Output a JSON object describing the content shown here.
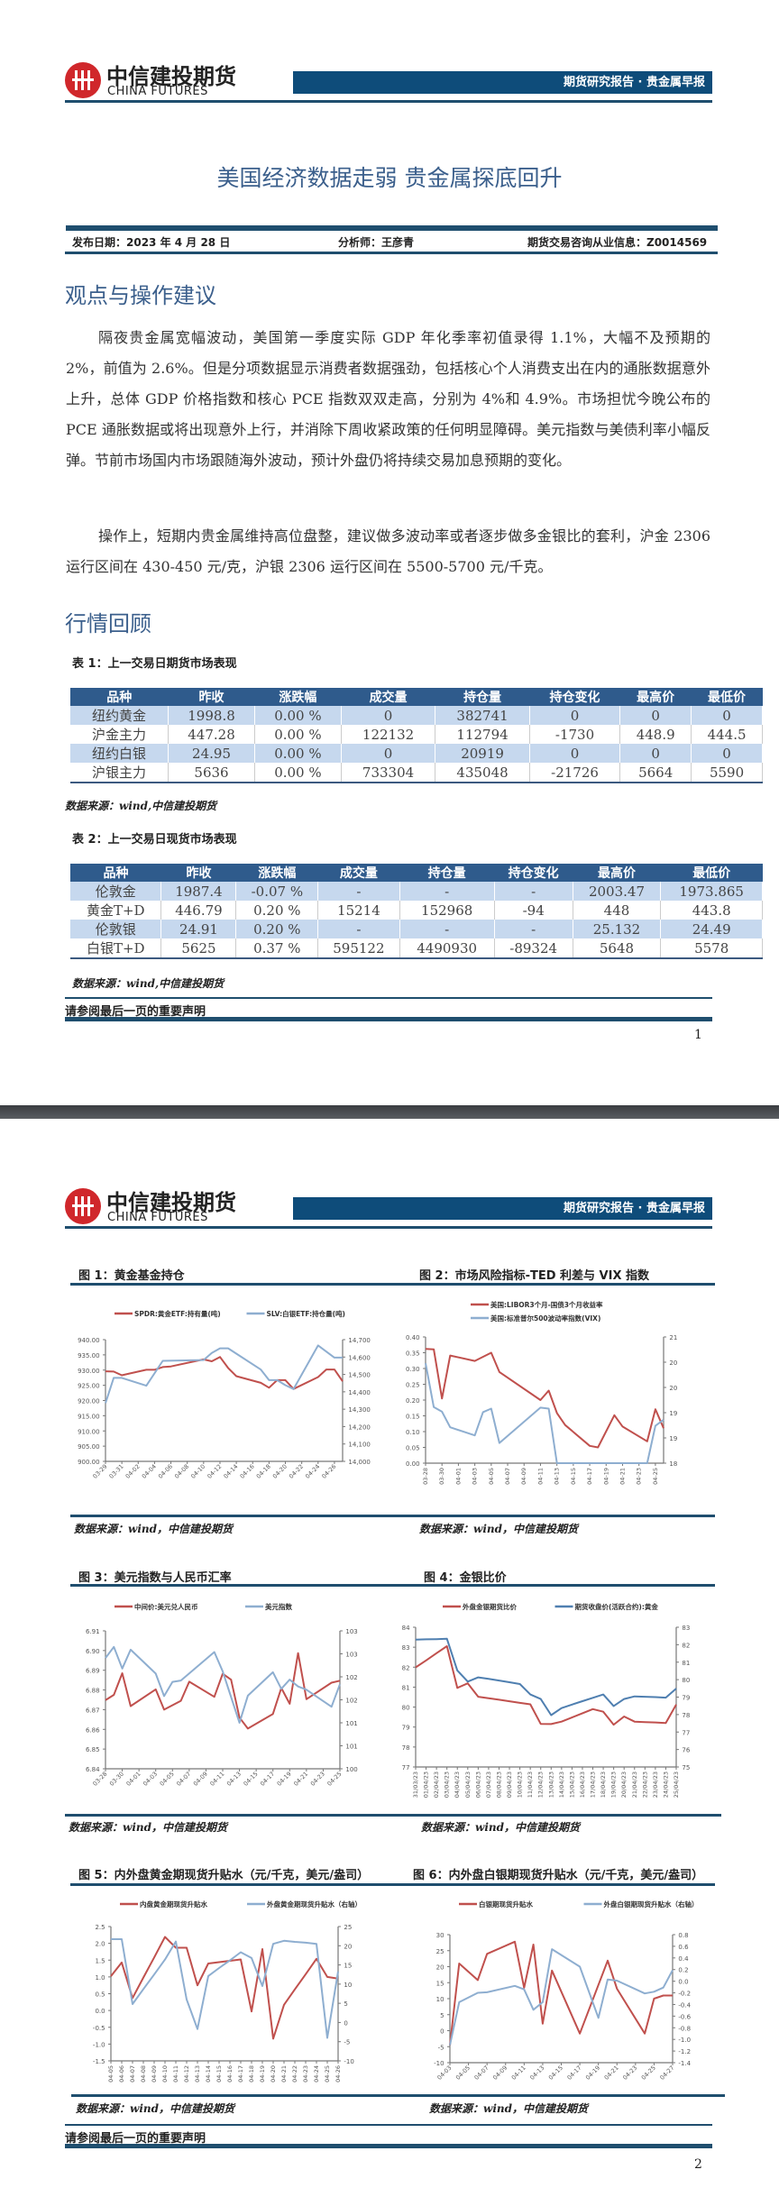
{
  "brand": {
    "name_cn": "中信建投期货",
    "name_en": "CHINA FUTURES",
    "logo_color": "#d0272b"
  },
  "header": {
    "report_type": "期货研究报告 · 贵金属早报",
    "bar_color": "#0e4c7a"
  },
  "page1": {
    "title": "美国经济数据走弱 贵金属探底回升",
    "publish_date": "发布日期：2023 年 4 月 28 日",
    "analyst": "分析师：王彦青",
    "license": "期货交易咨询从业信息：Z0014569",
    "section1": "观点与操作建议",
    "paragraphs": [
      "隔夜贵金属宽幅波动，美国第一季度实际 GDP 年化季率初值录得 1.1%，大幅不及预期的 2%，前值为 2.6%。但是分项数据显示消费者数据强劲，包括核心个人消费支出在内的通胀数据意外上升，总体 GDP 价格指数和核心 PCE 指数双双走高，分别为 4%和 4.9%。市场担忧今晚公布的 PCE 通胀数据或将出现意外上行，并消除下周收紧政策的任何明显障碍。美元指数与美债利率小幅反弹。节前市场国内市场跟随海外波动，预计外盘仍将持续交易加息预期的变化。",
      "操作上，短期内贵金属维持高位盘整，建议做多波动率或者逐步做多金银比的套利，沪金 2306 运行区间在 430-450 元/克，沪银 2306 运行区间在 5500-5700 元/千克。"
    ],
    "section2": "行情回顾",
    "table1": {
      "caption": "表 1：上一交易日期货市场表现",
      "columns": [
        "品种",
        "昨收",
        "涨跌幅",
        "成交量",
        "持仓量",
        "持仓变化",
        "最高价",
        "最低价"
      ],
      "rows": [
        [
          "纽约黄金",
          "1998.8",
          "0.00 %",
          "0",
          "382741",
          "0",
          "0",
          "0"
        ],
        [
          "沪金主力",
          "447.28",
          "0.00 %",
          "122132",
          "112794",
          "-1730",
          "448.9",
          "444.5"
        ],
        [
          "纽约白银",
          "24.95",
          "0.00 %",
          "0",
          "20919",
          "0",
          "0",
          "0"
        ],
        [
          "沪银主力",
          "5636",
          "0.00 %",
          "733304",
          "435048",
          "-21726",
          "5664",
          "5590"
        ]
      ],
      "source": "数据来源：wind,中信建投期货"
    },
    "table2": {
      "caption": "表 2：上一交易日现货市场表现",
      "columns": [
        "品种",
        "昨收",
        "涨跌幅",
        "成交量",
        "持仓量",
        "持仓变化",
        "最高价",
        "最低价"
      ],
      "rows": [
        [
          "伦敦金",
          "1987.4",
          "-0.07 %",
          "-",
          "-",
          "-",
          "2003.47",
          "1973.865"
        ],
        [
          "黄金T+D",
          "446.79",
          "0.20 %",
          "15214",
          "152968",
          "-94",
          "448",
          "443.8"
        ],
        [
          "伦敦银",
          "24.91",
          "0.20 %",
          "-",
          "-",
          "-",
          "25.132",
          "24.49"
        ],
        [
          "白银T+D",
          "5625",
          "0.37 %",
          "595122",
          "4490930",
          "-89324",
          "5648",
          "5578"
        ]
      ],
      "source": "数据来源：wind,中信建投期货"
    },
    "disclaimer": "请参阅最后一页的重要声明",
    "page_number": "1"
  },
  "page2": {
    "source": "数据来源：wind，中信建投期货",
    "disclaimer": "请参阅最后一页的重要声明",
    "page_number": "2"
  },
  "chart_data": [
    {
      "title": "图 1：黄金基金持仓",
      "type": "line",
      "x_type": "date",
      "x_range": [
        "03-29",
        "04-27"
      ],
      "x_ticks": [
        "03-29",
        "03-31",
        "04-02",
        "04-04",
        "04-06",
        "04-08",
        "04-10",
        "04-12",
        "04-14",
        "04-16",
        "04-18",
        "04-20",
        "04-22",
        "04-24",
        "04-26"
      ],
      "y_left": {
        "range": [
          900,
          940
        ],
        "ticks": [
          "900.00",
          "905.00",
          "910.00",
          "915.00",
          "920.00",
          "925.00",
          "930.00",
          "935.00",
          "940.00"
        ]
      },
      "y_right": {
        "range": [
          14000,
          14700
        ],
        "ticks": [
          "14,000",
          "14,100",
          "14,200",
          "14,300",
          "14,400",
          "14,500",
          "14,600",
          "14,700"
        ]
      },
      "series": [
        {
          "name": "SPDR:黄金ETF:持有量(吨)",
          "axis": "left",
          "color": "#c0504d",
          "x": [
            "03-29",
            "03-30",
            "03-31",
            "04-03",
            "04-04",
            "04-05",
            "04-06",
            "04-10",
            "04-11",
            "04-12",
            "04-13",
            "04-14",
            "04-17",
            "04-18",
            "04-19",
            "04-20",
            "04-21",
            "04-24",
            "04-25",
            "04-26",
            "04-27"
          ],
          "y": [
            929.6,
            929.5,
            928.3,
            930.1,
            930.1,
            931.0,
            931.2,
            933.5,
            932.9,
            934.3,
            930.7,
            928.0,
            925.8,
            924.2,
            926.7,
            926.7,
            923.8,
            927.7,
            930.2,
            930.2,
            926.3
          ]
        },
        {
          "name": "SLV:白银ETF:持仓量(吨)",
          "axis": "right",
          "color": "#8eaed0",
          "x": [
            "03-29",
            "03-30",
            "03-31",
            "04-03",
            "04-05",
            "04-10",
            "04-11",
            "04-12",
            "04-13",
            "04-17",
            "04-18",
            "04-19",
            "04-20",
            "04-21",
            "04-24",
            "04-26",
            "04-27"
          ],
          "y": [
            14335,
            14480,
            14480,
            14435,
            14578,
            14583,
            14624,
            14650,
            14650,
            14528,
            14467,
            14467,
            14438,
            14416,
            14667,
            14597,
            14597
          ]
        }
      ]
    },
    {
      "title": "图 2：市场风险指标-TED 利差与 VIX 指数",
      "type": "line",
      "x_type": "date",
      "x_range": [
        "03-28",
        "04-26"
      ],
      "x_label_rotate": "vertical",
      "x_ticks": [
        "03-28",
        "03-30",
        "04-01",
        "04-03",
        "04-05",
        "04-07",
        "04-09",
        "04-11",
        "04-13",
        "04-15",
        "04-17",
        "04-19",
        "04-21",
        "04-23",
        "04-25"
      ],
      "y_left": {
        "range": [
          0,
          0.4
        ],
        "ticks": [
          "0.00",
          "0.05",
          "0.10",
          "0.15",
          "0.20",
          "0.25",
          "0.30",
          "0.35",
          "0.40"
        ]
      },
      "y_right": {
        "range": [
          18.5,
          21
        ],
        "ticks": [
          "18",
          "19",
          "19",
          "20",
          "20",
          "21"
        ]
      },
      "legend_stacked": true,
      "series": [
        {
          "name": "美国:LIBOR3个月-国债3个月收益率",
          "axis": "left",
          "color": "#c0504d",
          "x": [
            "03-28",
            "03-29",
            "03-30",
            "03-31",
            "04-03",
            "04-05",
            "04-06",
            "04-11",
            "04-12",
            "04-13",
            "04-14",
            "04-17",
            "04-18",
            "04-20",
            "04-21",
            "04-24",
            "04-25",
            "04-26"
          ],
          "y": [
            0.362,
            0.361,
            0.205,
            0.341,
            0.324,
            0.35,
            0.289,
            0.2,
            0.23,
            0.159,
            0.121,
            0.055,
            0.05,
            0.152,
            0.116,
            0.069,
            0.171,
            0.111
          ]
        },
        {
          "name": "美国:标准普尔500波动率指数(VIX)",
          "axis": "right",
          "color": "#8eaed0",
          "x": [
            "03-28",
            "03-29",
            "03-30",
            "03-31",
            "04-03",
            "04-04",
            "04-05",
            "04-06",
            "04-11",
            "04-12",
            "04-13",
            "04-24",
            "04-25",
            "04-26"
          ],
          "y": [
            20.48,
            19.61,
            19.52,
            19.21,
            19.05,
            19.51,
            19.58,
            18.9,
            19.6,
            19.58,
            18.5,
            18.5,
            19.24,
            19.36
          ]
        }
      ]
    },
    {
      "title": "图 3：美元指数与人民币汇率",
      "type": "line",
      "x_type": "date",
      "x_range": [
        "03-28",
        "04-25"
      ],
      "x_ticks": [
        "03-28",
        "03-30",
        "04-01",
        "04-03",
        "04-05",
        "04-07",
        "04-09",
        "04-11",
        "04-13",
        "04-15",
        "04-17",
        "04-19",
        "04-21",
        "04-23",
        "04-25"
      ],
      "y_left": {
        "range": [
          6.84,
          6.91
        ],
        "ticks": [
          "6.84",
          "6.85",
          "6.86",
          "6.87",
          "6.88",
          "6.89",
          "6.90",
          "6.91"
        ]
      },
      "y_right": {
        "range": [
          100,
          103
        ],
        "ticks": [
          "100",
          "101",
          "101",
          "102",
          "102",
          "103",
          "103"
        ]
      },
      "series": [
        {
          "name": "中间价:美元兑人民币",
          "axis": "left",
          "color": "#c0504d",
          "x": [
            "03-28",
            "03-29",
            "03-30",
            "03-31",
            "04-03",
            "04-04",
            "04-06",
            "04-07",
            "04-10",
            "04-11",
            "04-12",
            "04-13",
            "04-14",
            "04-17",
            "04-18",
            "04-19",
            "04-20",
            "04-21",
            "04-24",
            "04-25"
          ],
          "y": [
            6.8748,
            6.8775,
            6.8885,
            6.8718,
            6.8803,
            6.87,
            6.8745,
            6.8842,
            6.8765,
            6.8882,
            6.8852,
            6.866,
            6.8604,
            6.8678,
            6.881,
            6.873,
            6.8987,
            6.8753,
            6.8837,
            6.8847
          ]
        },
        {
          "name": "美元指数",
          "axis": "right",
          "color": "#8eaed0",
          "x": [
            "03-28",
            "03-29",
            "03-30",
            "03-31",
            "04-03",
            "04-04",
            "04-05",
            "04-06",
            "04-10",
            "04-11",
            "04-13",
            "04-14",
            "04-17",
            "04-18",
            "04-19",
            "04-20",
            "04-21",
            "04-24",
            "04-25"
          ],
          "y": [
            102.41,
            102.65,
            102.18,
            102.59,
            102.07,
            101.58,
            101.89,
            101.92,
            102.54,
            102.12,
            101.0,
            101.59,
            102.1,
            101.74,
            101.94,
            101.79,
            101.72,
            101.35,
            101.84
          ]
        }
      ]
    },
    {
      "title": "图 4：金银比价",
      "type": "line",
      "x_type": "category",
      "x_label_rotate": "vertical",
      "categories": [
        "31/03/23",
        "01/04/23",
        "02/04/23",
        "03/04/23",
        "04/04/23",
        "05/04/23",
        "06/04/23",
        "07/04/23",
        "08/04/23",
        "09/04/23",
        "10/04/23",
        "11/04/23",
        "12/04/23",
        "13/04/23",
        "14/04/23",
        "15/04/23",
        "16/04/23",
        "17/04/23",
        "18/04/23",
        "19/04/23",
        "20/04/23",
        "21/04/23",
        "22/04/23",
        "23/04/23",
        "24/04/23",
        "25/04/23"
      ],
      "y_left": {
        "range": [
          77,
          84
        ],
        "ticks": [
          "77",
          "78",
          "79",
          "80",
          "81",
          "82",
          "83",
          "84"
        ]
      },
      "y_right": {
        "range": [
          75,
          83
        ],
        "ticks": [
          "75",
          "76",
          "77",
          "78",
          "79",
          "80",
          "81",
          "82",
          "83"
        ]
      },
      "series": [
        {
          "name": "外盘金银期货比价",
          "axis": "left",
          "color": "#c0504d",
          "y": [
            81.99,
            82.34,
            82.7,
            83.05,
            80.96,
            81.19,
            80.52,
            80.44,
            80.37,
            80.29,
            80.21,
            80.14,
            79.16,
            79.15,
            79.27,
            79.48,
            79.69,
            79.9,
            79.77,
            79.12,
            79.53,
            79.27,
            79.25,
            79.23,
            79.2,
            80.13
          ]
        },
        {
          "name": "期货收盘价(活跃合约):黄金",
          "axis": "right",
          "color": "#4f7fb0",
          "y": [
            82.29,
            82.31,
            82.32,
            82.34,
            80.53,
            79.89,
            80.13,
            80.04,
            79.95,
            79.85,
            79.75,
            79.15,
            78.89,
            77.97,
            78.37,
            78.57,
            78.77,
            78.96,
            79.15,
            78.49,
            78.89,
            79.04,
            79.02,
            79.0,
            78.97,
            79.49
          ]
        }
      ]
    },
    {
      "title": "图 5：内外盘黄金期现货升贴水（元/千克，美元/盎司）",
      "type": "line",
      "x_type": "category",
      "x_label_rotate": "vertical",
      "categories": [
        "04-05",
        "04-06",
        "04-07",
        "04-08",
        "04-09",
        "04-10",
        "04-11",
        "04-12",
        "04-13",
        "04-14",
        "04-15",
        "04-16",
        "04-17",
        "04-18",
        "04-19",
        "04-20",
        "04-21",
        "04-22",
        "04-23",
        "04-24",
        "04-25",
        "04-26"
      ],
      "y_left": {
        "range": [
          -1.5,
          2.5
        ],
        "ticks": [
          "-1.5",
          "-1.0",
          "-0.5",
          "0.0",
          "0.5",
          "1.0",
          "1.5",
          "2.0",
          "2.5"
        ]
      },
      "y_right": {
        "range": [
          -10,
          25
        ],
        "ticks": [
          "-10",
          "-5",
          "0",
          "5",
          "10",
          "15",
          "20",
          "25"
        ]
      },
      "series": [
        {
          "name": "内盘黄金期现货升贴水",
          "axis": "left",
          "color": "#c0504d",
          "y": [
            1.02,
            1.43,
            0.37,
            0.98,
            1.58,
            2.19,
            1.87,
            1.87,
            0.75,
            1.4,
            1.44,
            1.48,
            1.52,
            -0.03,
            1.83,
            -0.84,
            0.17,
            0.63,
            1.08,
            1.54,
            1.0,
            0.95
          ]
        },
        {
          "name": "外盘黄金期现货升贴水（右轴）",
          "axis": "right",
          "color": "#8eaed0",
          "y": [
            21.7,
            21.7,
            4.8,
            8.7,
            12.5,
            16.4,
            21.1,
            6.0,
            -1.7,
            12.1,
            14.2,
            16.2,
            18.3,
            16.8,
            9.5,
            20.5,
            21.3,
            21.0,
            20.8,
            20.5,
            -4.0,
            13.3
          ]
        }
      ]
    },
    {
      "title": "图 6：内外盘白银期现货升贴水（元/千克，美元/盎司）",
      "type": "line",
      "x_type": "date",
      "x_range": [
        "04-03",
        "04-27"
      ],
      "x_ticks": [
        "04-03",
        "04-05",
        "04-07",
        "04-09",
        "04-11",
        "04-13",
        "04-15",
        "04-17",
        "04-19",
        "04-21",
        "04-23",
        "04-25",
        "04-27"
      ],
      "y_left": {
        "range": [
          -10,
          30
        ],
        "ticks": [
          "-10",
          "-5",
          "0",
          "5",
          "10",
          "15",
          "20",
          "25",
          "30"
        ]
      },
      "y_right": {
        "range": [
          -1.4,
          0.8
        ],
        "ticks": [
          "-1.4",
          "-1.2",
          "-1.0",
          "-0.8",
          "-0.6",
          "-0.4",
          "-0.2",
          "0.0",
          "0.2",
          "0.4",
          "0.6",
          "0.8"
        ]
      },
      "series": [
        {
          "name": "白银期现货升贴水",
          "axis": "left",
          "color": "#c0504d",
          "x": [
            "04-03",
            "04-04",
            "04-06",
            "04-07",
            "04-10",
            "04-11",
            "04-12",
            "04-13",
            "04-14",
            "04-17",
            "04-20",
            "04-21",
            "04-24",
            "04-25",
            "04-26",
            "04-27"
          ],
          "y": [
            -4.6,
            21.0,
            15.8,
            24.0,
            27.8,
            13.4,
            26.9,
            2.2,
            18.8,
            -0.9,
            21.9,
            13.1,
            -0.9,
            10,
            11,
            11
          ]
        },
        {
          "name": "外盘白银期现货升贴水（右轴）",
          "axis": "right",
          "color": "#8eaed0",
          "x": [
            "04-03",
            "04-04",
            "04-06",
            "04-07",
            "04-10",
            "04-11",
            "04-12",
            "04-13",
            "04-14",
            "04-17",
            "04-19",
            "04-20",
            "04-21",
            "04-24",
            "04-25",
            "04-26",
            "04-27"
          ],
          "y": [
            -1.1,
            -0.36,
            -0.2,
            -0.19,
            -0.08,
            -0.14,
            -0.49,
            -0.36,
            0.55,
            0.25,
            -0.63,
            0.03,
            0.01,
            -0.21,
            -0.18,
            -0.11,
            0.19
          ]
        }
      ]
    }
  ]
}
